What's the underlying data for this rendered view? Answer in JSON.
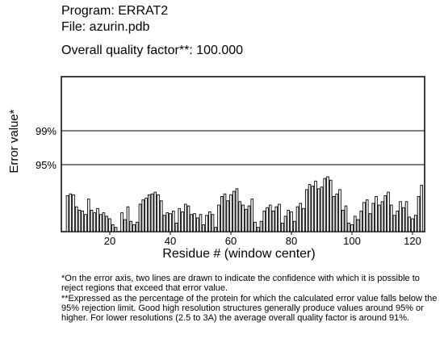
{
  "header": {
    "program": "Program: ERRAT2",
    "file": "File: azurin.pdb",
    "quality": "Overall quality factor**: 100.000"
  },
  "notes": {
    "note1": "*On the error axis, two lines are drawn to indicate the confidence with which it is possible to reject regions that exceed that error value.",
    "note2": "**Expressed as the percentage of the protein for which the calculated error value falls below the 95% rejection limit.  Good high resolution structures generally produce values around 95% or higher.  For lower resolutions (2.5 to 3A) the average overall quality factor is around 91%."
  },
  "chart_data": {
    "type": "bar",
    "title": "",
    "xlabel": "Residue # (window center)",
    "ylabel": "Error value*",
    "x_ticks": [
      20,
      40,
      60,
      80,
      100,
      120
    ],
    "xlim": [
      4,
      124
    ],
    "ylim": [
      0,
      100
    ],
    "y_ticks": [
      {
        "value": 95,
        "label": "95%"
      },
      {
        "value": 99,
        "label": "99%"
      }
    ],
    "threshold_lines": [
      95,
      99
    ],
    "grid": false,
    "x": [
      6,
      7,
      8,
      9,
      10,
      11,
      12,
      13,
      14,
      15,
      16,
      17,
      18,
      19,
      20,
      21,
      22,
      23,
      24,
      25,
      26,
      27,
      28,
      29,
      30,
      31,
      32,
      33,
      34,
      35,
      36,
      37,
      38,
      39,
      40,
      41,
      42,
      43,
      44,
      45,
      46,
      47,
      48,
      49,
      50,
      51,
      52,
      53,
      54,
      55,
      56,
      57,
      58,
      59,
      60,
      61,
      62,
      63,
      64,
      65,
      66,
      67,
      68,
      69,
      70,
      71,
      72,
      73,
      74,
      75,
      76,
      77,
      78,
      79,
      80,
      81,
      82,
      83,
      84,
      85,
      86,
      87,
      88,
      89,
      90,
      91,
      92,
      93,
      94,
      95,
      96,
      97,
      98,
      99,
      100,
      101,
      102,
      103,
      104,
      105,
      106,
      107,
      108,
      109,
      110,
      111,
      112,
      113,
      114,
      115,
      116,
      117,
      118,
      119,
      120,
      121,
      122,
      123
    ],
    "values": [
      42,
      44,
      43,
      29,
      25,
      24,
      20,
      38,
      25,
      22,
      27,
      20,
      22,
      18,
      15,
      8,
      5,
      0,
      22,
      14,
      29,
      12,
      8,
      11,
      32,
      37,
      39,
      43,
      44,
      46,
      43,
      36,
      19,
      22,
      21,
      24,
      10,
      27,
      23,
      32,
      30,
      20,
      21,
      16,
      20,
      8,
      19,
      23,
      20,
      5,
      31,
      41,
      44,
      36,
      43,
      47,
      50,
      35,
      31,
      26,
      30,
      38,
      11,
      5,
      12,
      24,
      28,
      31,
      24,
      29,
      32,
      10,
      18,
      25,
      23,
      12,
      29,
      33,
      27,
      49,
      55,
      53,
      59,
      50,
      52,
      62,
      64,
      60,
      41,
      44,
      49,
      25,
      30,
      10,
      8,
      18,
      14,
      24,
      34,
      37,
      21,
      33,
      41,
      31,
      35,
      42,
      46,
      31,
      19,
      24,
      35,
      28,
      35,
      17,
      15,
      19,
      41,
      54
    ]
  }
}
